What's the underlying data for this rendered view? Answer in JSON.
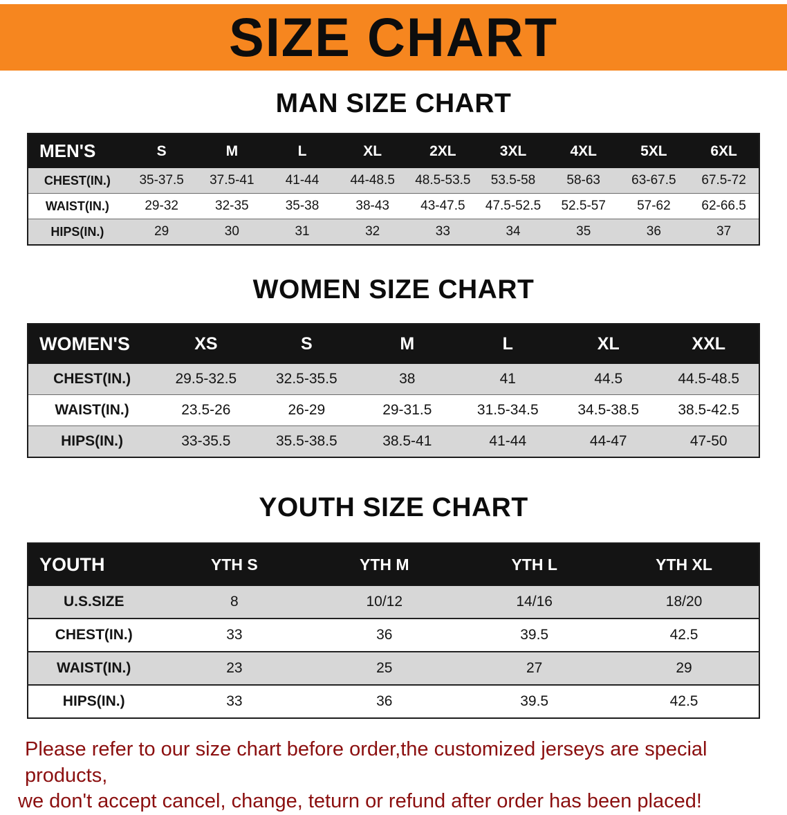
{
  "banner": {
    "title": "SIZE CHART",
    "bg_color": "#F6861F",
    "text_color": "#0D0D0D"
  },
  "sections": {
    "men": {
      "title": "MAN SIZE CHART",
      "table": {
        "header": [
          "MEN'S",
          "S",
          "M",
          "L",
          "XL",
          "2XL",
          "3XL",
          "4XL",
          "5XL",
          "6XL"
        ],
        "rows": [
          [
            "CHEST(IN.)",
            "35-37.5",
            "37.5-41",
            "41-44",
            "44-48.5",
            "48.5-53.5",
            "53.5-58",
            "58-63",
            "63-67.5",
            "67.5-72"
          ],
          [
            "WAIST(IN.)",
            "29-32",
            "32-35",
            "35-38",
            "38-43",
            "43-47.5",
            "47.5-52.5",
            "52.5-57",
            "57-62",
            "62-66.5"
          ],
          [
            "HIPS(IN.)",
            "29",
            "30",
            "31",
            "32",
            "33",
            "34",
            "35",
            "36",
            "37"
          ]
        ]
      }
    },
    "women": {
      "title": "WOMEN SIZE CHART",
      "table": {
        "header": [
          "WOMEN'S",
          "XS",
          "S",
          "M",
          "L",
          "XL",
          "XXL"
        ],
        "rows": [
          [
            "CHEST(IN.)",
            "29.5-32.5",
            "32.5-35.5",
            "38",
            "41",
            "44.5",
            "44.5-48.5"
          ],
          [
            "WAIST(IN.)",
            "23.5-26",
            "26-29",
            "29-31.5",
            "31.5-34.5",
            "34.5-38.5",
            "38.5-42.5"
          ],
          [
            "HIPS(IN.)",
            "33-35.5",
            "35.5-38.5",
            "38.5-41",
            "41-44",
            "44-47",
            "47-50"
          ]
        ]
      }
    },
    "youth": {
      "title": "YOUTH SIZE CHART",
      "table": {
        "header": [
          "YOUTH",
          "YTH S",
          "YTH M",
          "YTH L",
          "YTH XL"
        ],
        "rows": [
          [
            "U.S.SIZE",
            "8",
            "10/12",
            "14/16",
            "18/20"
          ],
          [
            "CHEST(IN.)",
            "33",
            "36",
            "39.5",
            "42.5"
          ],
          [
            "WAIST(IN.)",
            "23",
            "25",
            "27",
            "29"
          ],
          [
            "HIPS(IN.)",
            "33",
            "36",
            "39.5",
            "42.5"
          ]
        ]
      }
    }
  },
  "footer": {
    "line1": "Please refer to our size chart before order,the customized jerseys are special products,",
    "line2": "we don't accept cancel, change, teturn or refund after order has been placed!",
    "text_color": "#8B0F0F"
  },
  "colors": {
    "table_header_bg": "#141414",
    "row_alt_gray": "#D7D7D7",
    "page_bg": "#FFFFFF"
  }
}
